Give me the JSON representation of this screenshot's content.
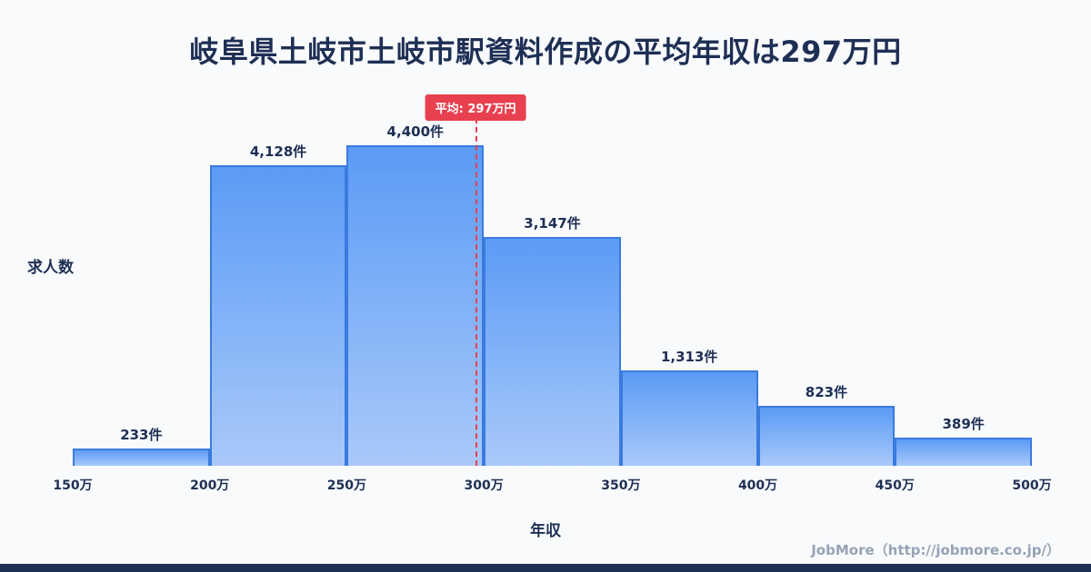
{
  "chart_data": {
    "type": "bar",
    "title": "岐阜県土岐市土岐市駅資料作成の平均年収は297万円",
    "ylabel": "求人数",
    "xlabel": "年収",
    "x_tick_labels": [
      "150万",
      "200万",
      "250万",
      "300万",
      "350万",
      "400万",
      "450万",
      "500万"
    ],
    "x_range": [
      150,
      500
    ],
    "bin_width": 50,
    "values": [
      233,
      4128,
      4400,
      3147,
      1313,
      823,
      389
    ],
    "bar_labels": [
      "233件",
      "4,128件",
      "4,400件",
      "3,147件",
      "1,313件",
      "823件",
      "389件"
    ],
    "ylim": [
      0,
      4400
    ],
    "average": {
      "value": 297,
      "label": "平均: 297万円"
    },
    "grid": false,
    "legend": "none",
    "colors": {
      "background": "#f8fafc",
      "bar_top": "#5b9bf6",
      "bar_bottom": "#a9c9f9",
      "bar_border": "#3a7bdf",
      "average_line": "#e8404f",
      "text": "#1e2f54",
      "footer_text": "#97a2b5",
      "bottom_strip": "#1e2f54"
    }
  },
  "footer": {
    "credit": "JobMore（http://jobmore.co.jp/）"
  }
}
